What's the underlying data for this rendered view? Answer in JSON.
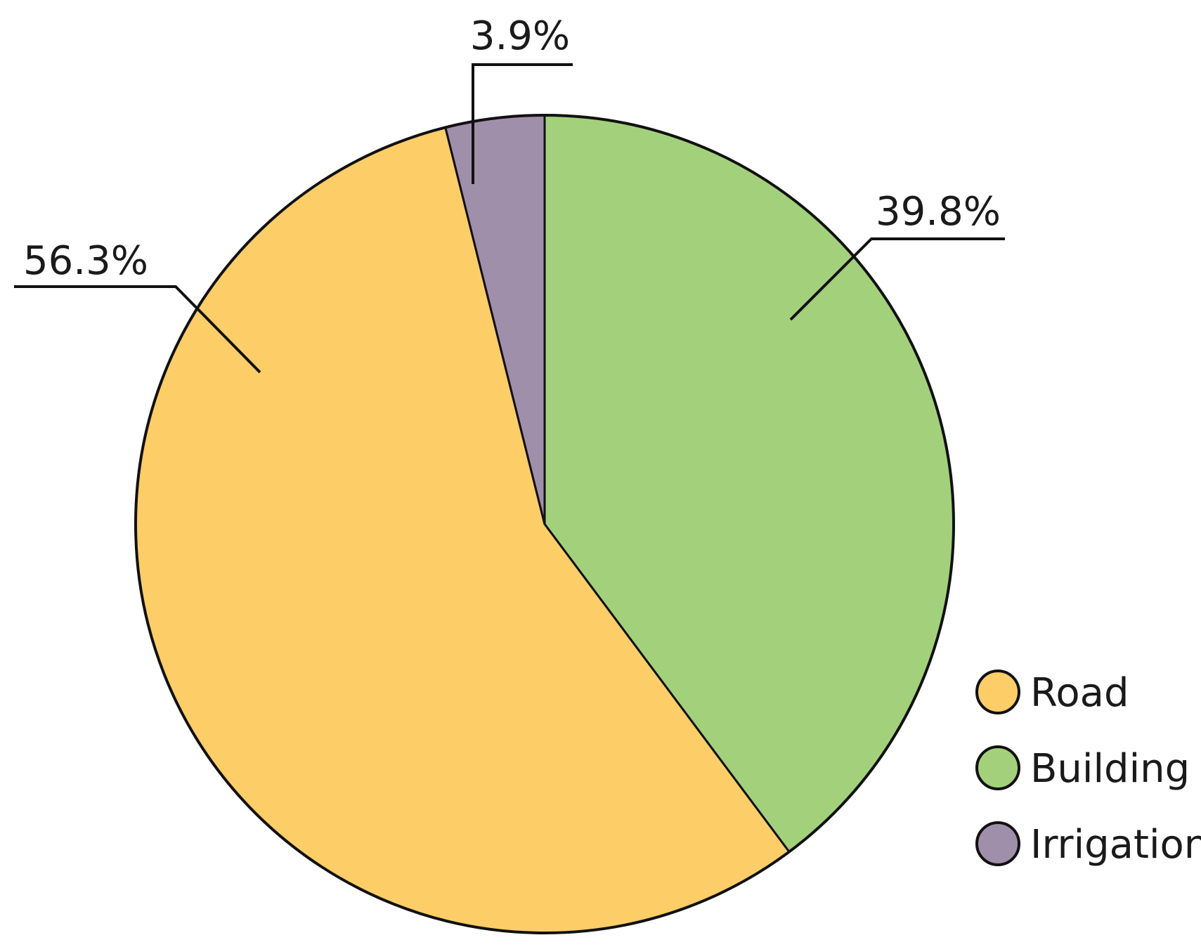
{
  "chart_data": {
    "type": "pie",
    "title": "",
    "categories": [
      "Road",
      "Building",
      "Irrigation"
    ],
    "values": [
      56.3,
      39.8,
      3.9
    ],
    "value_labels": [
      "56.3%",
      "39.8%",
      "3.9%"
    ],
    "colors": [
      "#FDCD68",
      "#A3D17B",
      "#A08FAA"
    ],
    "legend": {
      "placement": "bottom-right",
      "items": [
        {
          "label": "Road",
          "color": "#FDCD68"
        },
        {
          "label": "Building",
          "color": "#A3D17B"
        },
        {
          "label": "Irrigation",
          "color": "#A08FAA"
        }
      ]
    },
    "start_slice": "Building",
    "direction": "clockwise-from-top"
  }
}
